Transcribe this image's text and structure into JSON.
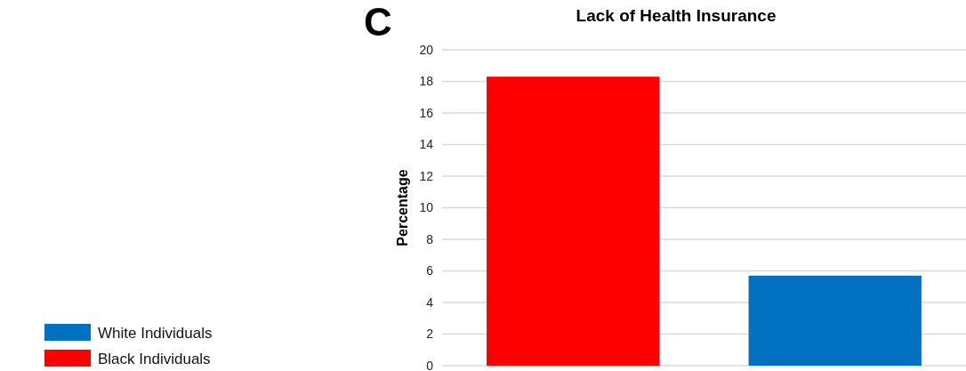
{
  "chart_data": {
    "type": "bar",
    "title": "Lack of Health Insurance",
    "ylabel": "Percentage",
    "annotations": [
      "C"
    ],
    "categories": [
      null,
      null
    ],
    "series": [
      {
        "name": "Black Individuals",
        "color": "#ff0000",
        "values": [
          18.3,
          null
        ]
      },
      {
        "name": "White Individuals",
        "color": "#0070c0",
        "values": [
          null,
          5.7
        ]
      }
    ],
    "ylim": [
      0,
      20
    ],
    "yticks": [
      0,
      2,
      4,
      6,
      8,
      10,
      12,
      14,
      16,
      18,
      20
    ],
    "grid": "y",
    "legend": "bottom left"
  }
}
